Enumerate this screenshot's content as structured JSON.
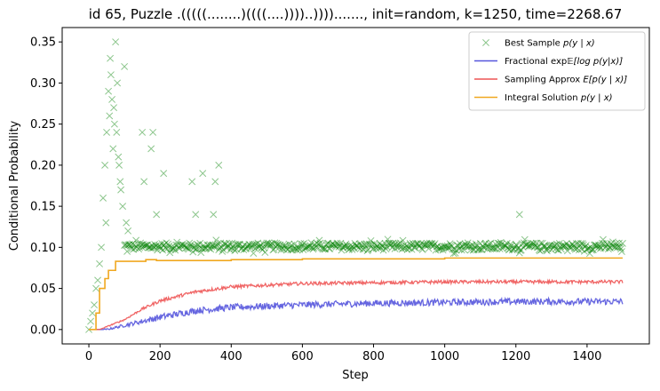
{
  "chart_data": {
    "type": "line",
    "title": "id 65, Puzzle .(((((........)((((....))))..)))).......,  init=random, k=1250, time=2268.67",
    "xlabel": "Step",
    "ylabel": "Conditional Probability",
    "xlim": [
      -75,
      1575
    ],
    "ylim": [
      -0.0175,
      0.3675
    ],
    "xticks": [
      0,
      200,
      400,
      600,
      800,
      1000,
      1200,
      1400
    ],
    "yticks": [
      0.0,
      0.05,
      0.1,
      0.15,
      0.2,
      0.25,
      0.3,
      0.35
    ],
    "ytick_labels": [
      "0.00",
      "0.05",
      "0.10",
      "0.15",
      "0.20",
      "0.25",
      "0.30",
      "0.35"
    ],
    "grid": false,
    "legend_position": "top-right",
    "series": [
      {
        "name": "Best Sample p(y | x)",
        "style": "scatter-x",
        "color": "#008000",
        "outliers": [
          [
            0,
            0.0
          ],
          [
            5,
            0.01
          ],
          [
            10,
            0.02
          ],
          [
            15,
            0.03
          ],
          [
            20,
            0.05
          ],
          [
            25,
            0.06
          ],
          [
            30,
            0.08
          ],
          [
            35,
            0.1
          ],
          [
            40,
            0.16
          ],
          [
            45,
            0.2
          ],
          [
            48,
            0.13
          ],
          [
            50,
            0.24
          ],
          [
            55,
            0.29
          ],
          [
            58,
            0.26
          ],
          [
            60,
            0.33
          ],
          [
            62,
            0.31
          ],
          [
            65,
            0.28
          ],
          [
            68,
            0.22
          ],
          [
            70,
            0.27
          ],
          [
            72,
            0.25
          ],
          [
            75,
            0.35
          ],
          [
            78,
            0.24
          ],
          [
            80,
            0.3
          ],
          [
            83,
            0.21
          ],
          [
            85,
            0.2
          ],
          [
            88,
            0.18
          ],
          [
            90,
            0.17
          ],
          [
            95,
            0.15
          ],
          [
            100,
            0.32
          ],
          [
            105,
            0.13
          ],
          [
            110,
            0.12
          ],
          [
            150,
            0.24
          ],
          [
            155,
            0.18
          ],
          [
            175,
            0.22
          ],
          [
            180,
            0.24
          ],
          [
            190,
            0.14
          ],
          [
            210,
            0.19
          ],
          [
            290,
            0.18
          ],
          [
            300,
            0.14
          ],
          [
            320,
            0.19
          ],
          [
            350,
            0.14
          ],
          [
            355,
            0.18
          ],
          [
            365,
            0.2
          ],
          [
            1210,
            0.14
          ]
        ],
        "band": {
          "x_start": 100,
          "x_end": 1500,
          "center": 0.101,
          "spread": 0.009
        }
      },
      {
        "name": "Fractional exp𝔼[log p(y|x)]",
        "color": "#5555dd",
        "anchors": [
          [
            0,
            0.0
          ],
          [
            50,
            0.0
          ],
          [
            100,
            0.005
          ],
          [
            200,
            0.015
          ],
          [
            300,
            0.023
          ],
          [
            400,
            0.027
          ],
          [
            600,
            0.03
          ],
          [
            800,
            0.032
          ],
          [
            1000,
            0.033
          ],
          [
            1200,
            0.034
          ],
          [
            1500,
            0.034
          ]
        ],
        "noise": 0.004
      },
      {
        "name": "Sampling Approx E[p(y | x)]",
        "color": "#ee5555",
        "anchors": [
          [
            0,
            0.0
          ],
          [
            30,
            0.0
          ],
          [
            100,
            0.012
          ],
          [
            150,
            0.025
          ],
          [
            200,
            0.035
          ],
          [
            300,
            0.046
          ],
          [
            400,
            0.052
          ],
          [
            600,
            0.056
          ],
          [
            800,
            0.057
          ],
          [
            1000,
            0.058
          ],
          [
            1200,
            0.058
          ],
          [
            1500,
            0.058
          ]
        ],
        "noise": 0.002
      },
      {
        "name": "Integral Solution p(y | x)",
        "color": "#f0a820",
        "steps": [
          [
            0,
            0.0
          ],
          [
            20,
            0.02
          ],
          [
            30,
            0.05
          ],
          [
            45,
            0.062
          ],
          [
            55,
            0.072
          ],
          [
            75,
            0.083
          ],
          [
            160,
            0.085
          ],
          [
            190,
            0.084
          ],
          [
            400,
            0.085
          ],
          [
            600,
            0.086
          ],
          [
            1000,
            0.087
          ],
          [
            1500,
            0.087
          ]
        ]
      }
    ],
    "legend_labels": [
      {
        "prefix": "Best Sample ",
        "math": "p(y | x)"
      },
      {
        "prefix": "Fractional exp",
        "math": "𝔼[log p(y|x)]"
      },
      {
        "prefix": "Sampling Approx ",
        "math": "E[p(y | x)]"
      },
      {
        "prefix": "Integral Solution ",
        "math": "p(y | x)"
      }
    ]
  }
}
